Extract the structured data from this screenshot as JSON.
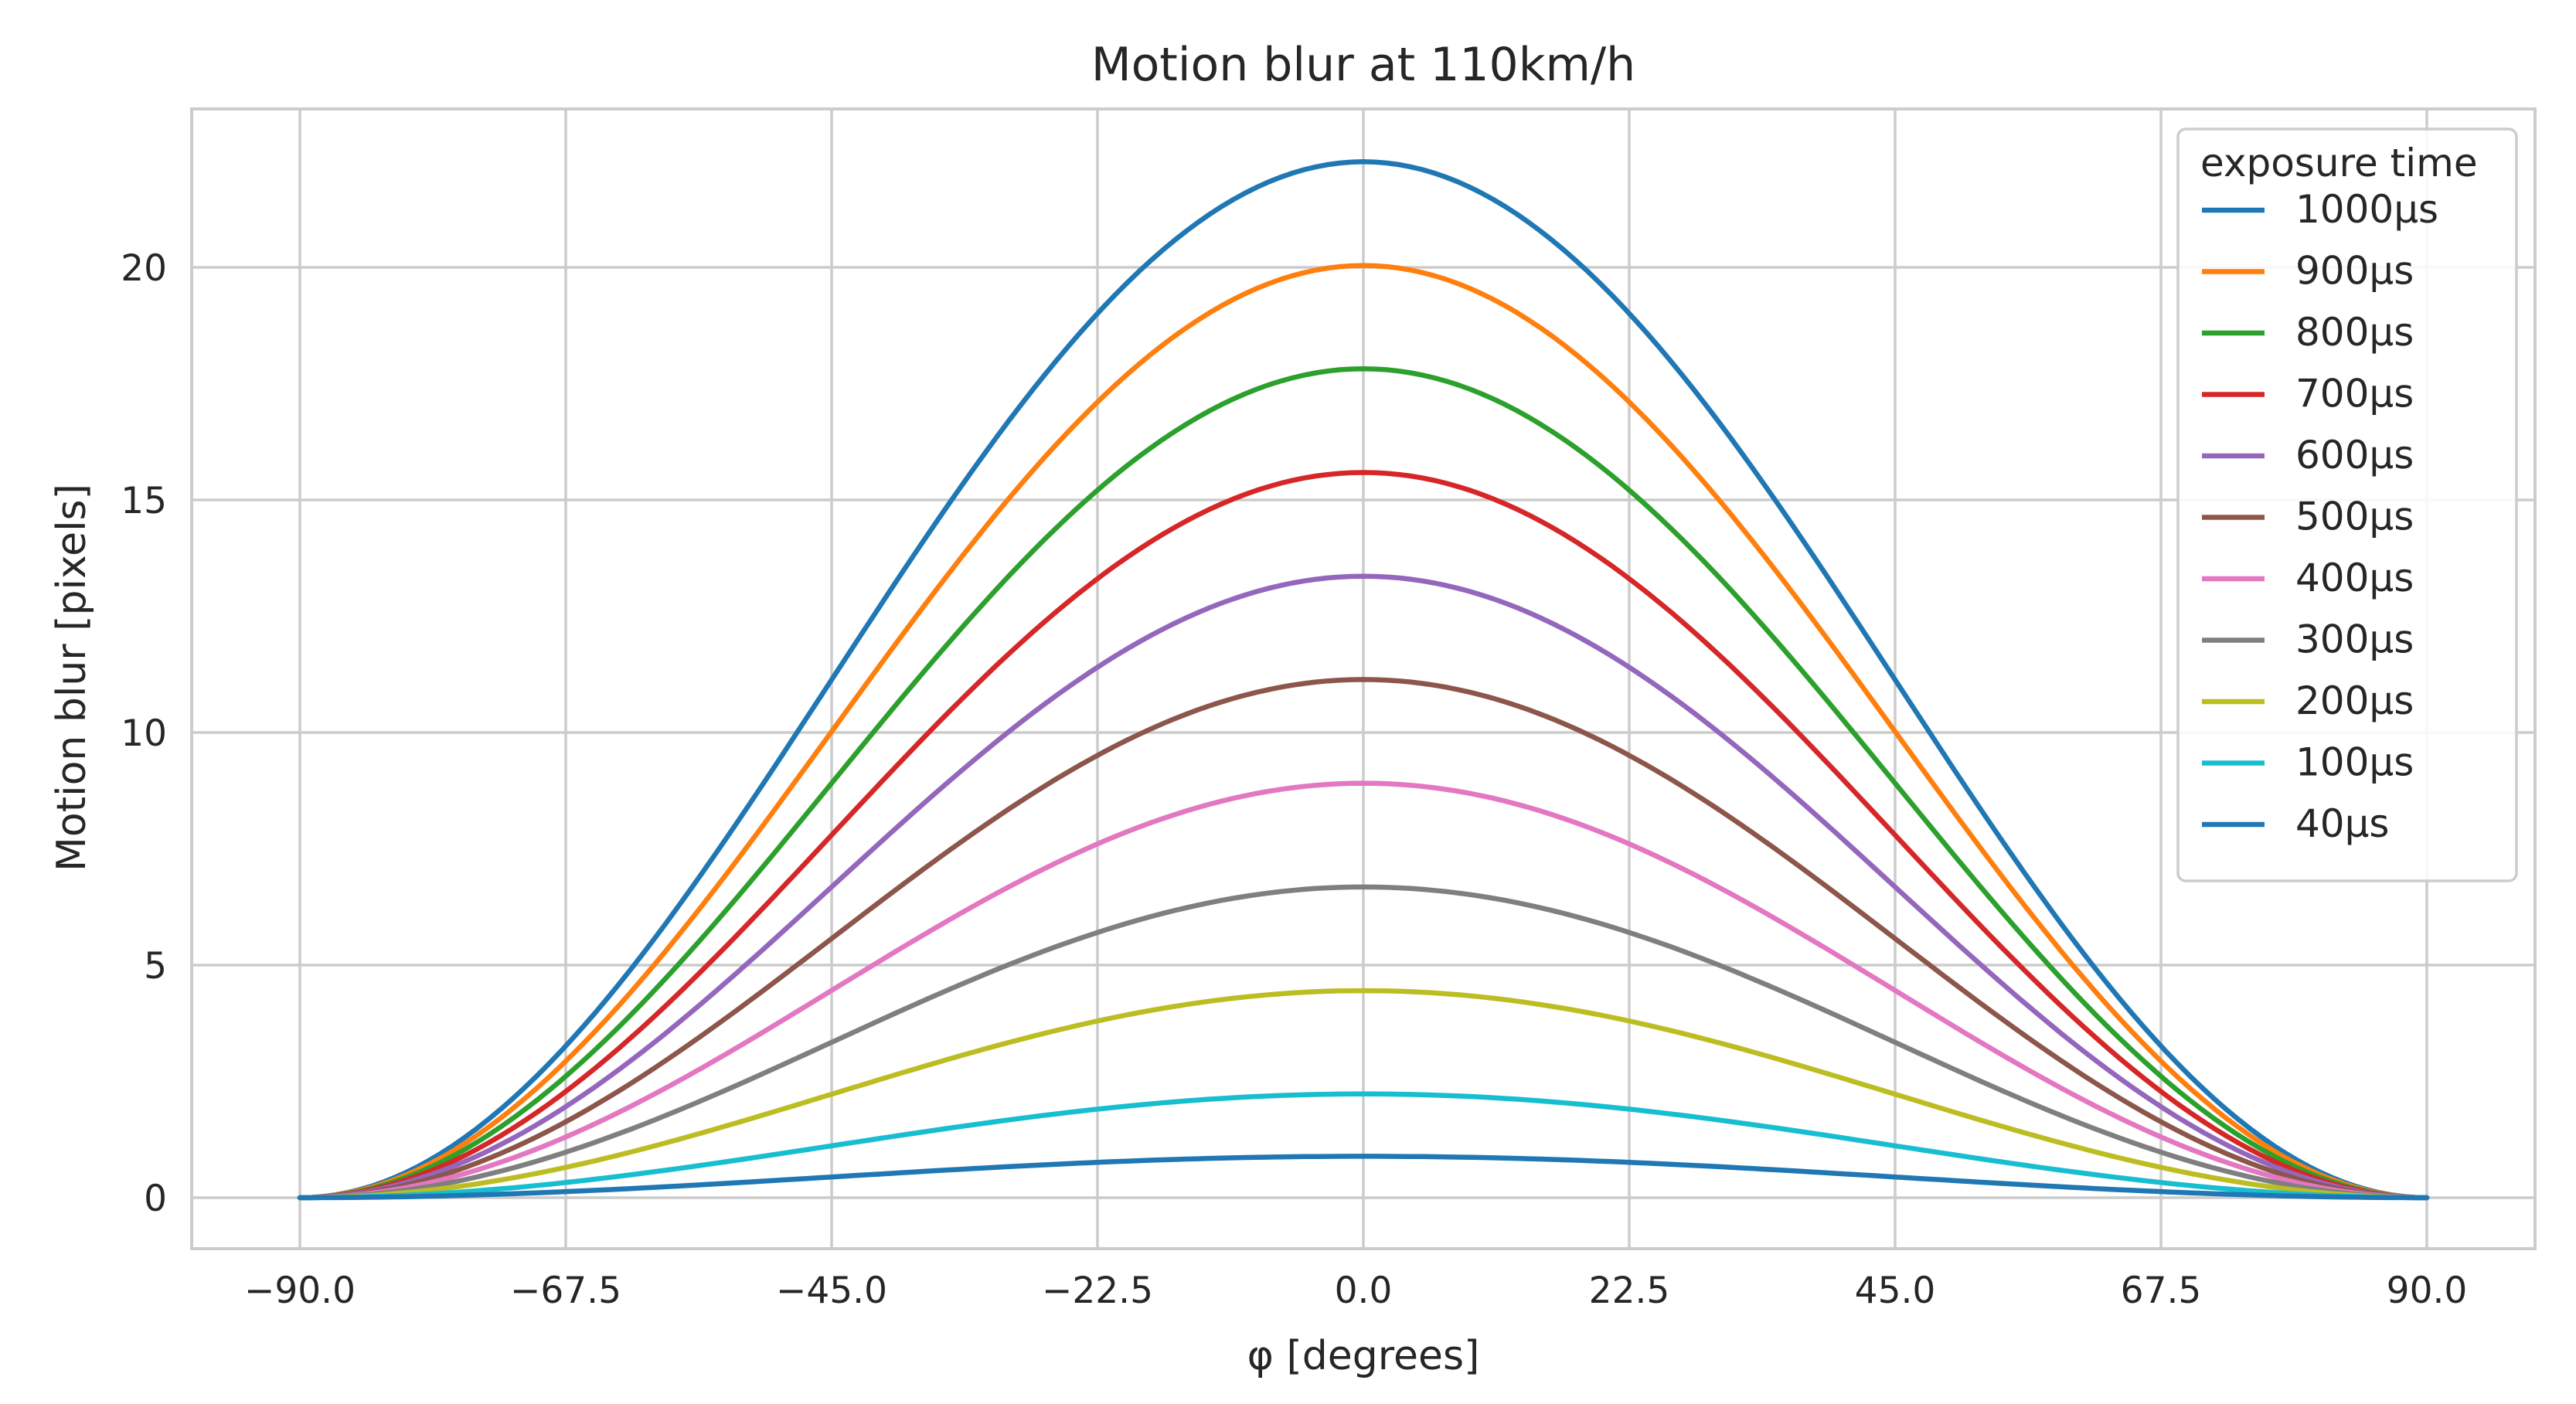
{
  "chart_data": {
    "type": "line",
    "title": "Motion blur at 110km/h",
    "xlabel": "φ [degrees]",
    "ylabel": "Motion blur [pixels]",
    "xlim": [
      -100,
      100
    ],
    "ylim": [
      -1.1,
      23.4
    ],
    "xticks": [
      -90.0,
      -67.5,
      -45.0,
      -22.5,
      0.0,
      22.5,
      45.0,
      67.5,
      90.0
    ],
    "xtick_labels": [
      "−90.0",
      "−67.5",
      "−45.0",
      "−22.5",
      "0.0",
      "22.5",
      "45.0",
      "67.5",
      "90.0"
    ],
    "yticks": [
      0,
      5,
      10,
      15,
      20
    ],
    "ytick_labels": [
      "0",
      "5",
      "10",
      "15",
      "20"
    ],
    "grid": true,
    "x_range": [
      -90,
      90
    ],
    "curve_shape": "peak * cos(phi)^2",
    "legend": {
      "title": "exposure time",
      "location": "top-right"
    },
    "series": [
      {
        "name": "1000μs",
        "peak": 22.27,
        "color": "#1f77b4"
      },
      {
        "name": "900μs",
        "peak": 20.04,
        "color": "#ff7f0e"
      },
      {
        "name": "800μs",
        "peak": 17.82,
        "color": "#2ca02c"
      },
      {
        "name": "700μs",
        "peak": 15.59,
        "color": "#d62728"
      },
      {
        "name": "600μs",
        "peak": 13.36,
        "color": "#9467bd"
      },
      {
        "name": "500μs",
        "peak": 11.14,
        "color": "#8c564b"
      },
      {
        "name": "400μs",
        "peak": 8.91,
        "color": "#e377c2"
      },
      {
        "name": "300μs",
        "peak": 6.68,
        "color": "#7f7f7f"
      },
      {
        "name": "200μs",
        "peak": 4.45,
        "color": "#bcbd22"
      },
      {
        "name": "100μs",
        "peak": 2.23,
        "color": "#17becf"
      },
      {
        "name": "40μs",
        "peak": 0.89,
        "color": "#1f77b4"
      }
    ]
  }
}
